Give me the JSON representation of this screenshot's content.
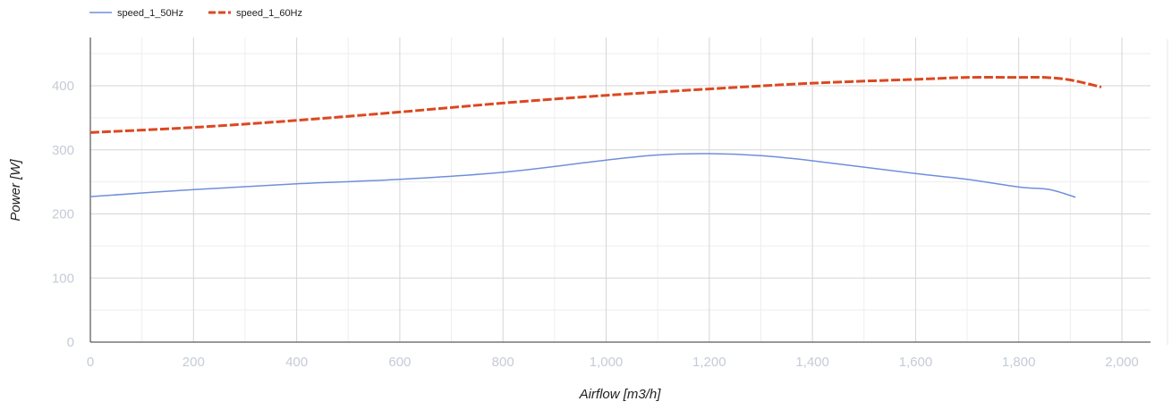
{
  "chart_data": {
    "type": "line",
    "xlabel": "Airflow [m3/h]",
    "ylabel": "Power [W]",
    "xlim": [
      0,
      2000
    ],
    "ylim": [
      0,
      450
    ],
    "x_ticks": [
      0,
      200,
      400,
      600,
      800,
      1000,
      1200,
      1400,
      1600,
      1800,
      2000
    ],
    "x_tick_labels": [
      "0",
      "200",
      "400",
      "600",
      "800",
      "1,000",
      "1,200",
      "1,400",
      "1,600",
      "1,800",
      "2,000"
    ],
    "y_ticks": [
      0,
      100,
      200,
      300,
      400
    ],
    "y_tick_labels": [
      "0",
      "100",
      "200",
      "300",
      "400"
    ],
    "grid": true,
    "legend_position": "top-left",
    "series": [
      {
        "name": "speed_1_50Hz",
        "color": "#6f8fdc",
        "style": "solid",
        "x": [
          0,
          200,
          400,
          600,
          800,
          1000,
          1100,
          1200,
          1300,
          1400,
          1600,
          1700,
          1800,
          1860,
          1910
        ],
        "y": [
          227,
          238,
          247,
          254,
          265,
          284,
          292,
          294,
          291,
          283,
          263,
          254,
          242,
          238,
          226
        ]
      },
      {
        "name": "speed_1_60Hz",
        "color": "#dc4820",
        "style": "dashed",
        "x": [
          0,
          200,
          400,
          600,
          800,
          1000,
          1200,
          1400,
          1600,
          1700,
          1800,
          1850,
          1900,
          1960
        ],
        "y": [
          327,
          335,
          346,
          359,
          373,
          385,
          395,
          404,
          410,
          413,
          413,
          413,
          409,
          398
        ]
      }
    ]
  }
}
